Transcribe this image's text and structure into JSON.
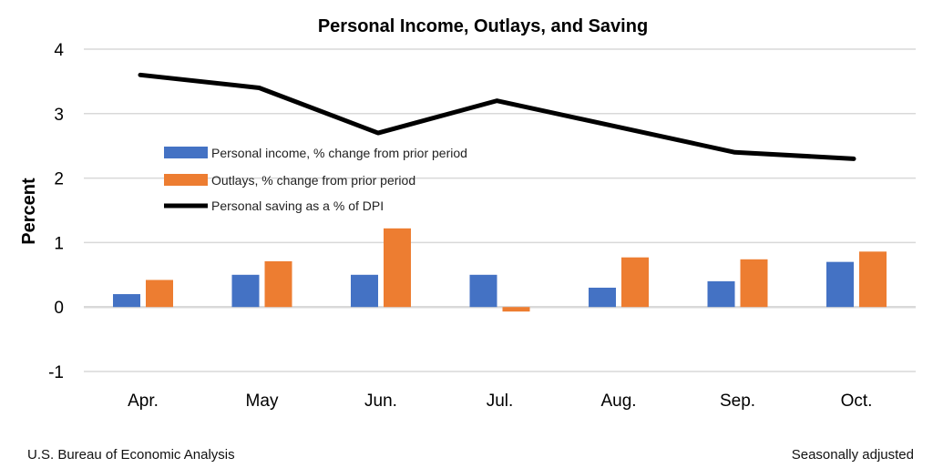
{
  "chart_data": {
    "type": "bar+line",
    "title": "Personal Income, Outlays, and Saving",
    "xlabel": "",
    "ylabel": "Percent",
    "categories": [
      "Apr.",
      "May",
      "Jun.",
      "Jul.",
      "Aug.",
      "Sep.",
      "Oct."
    ],
    "ylim": [
      -1,
      4
    ],
    "yticks": [
      -1,
      0,
      1,
      2,
      3,
      4
    ],
    "grid": true,
    "legend_position": "upper-left-inside",
    "series": [
      {
        "name": "Personal income, % change from prior period",
        "type": "bar",
        "color": "#4472C4",
        "values": [
          0.2,
          0.5,
          0.5,
          0.5,
          0.3,
          0.4,
          0.7
        ]
      },
      {
        "name": "Outlays, % change from prior period",
        "type": "bar",
        "color": "#ED7D31",
        "values": [
          0.42,
          0.71,
          1.22,
          -0.07,
          0.77,
          0.74,
          0.86
        ]
      },
      {
        "name": "Personal saving as a % of DPI",
        "type": "line",
        "color": "#000000",
        "values": [
          3.6,
          3.4,
          2.7,
          3.2,
          2.8,
          2.4,
          2.3
        ]
      }
    ],
    "source": "U.S. Bureau of Economic Analysis",
    "note": "Seasonally adjusted"
  }
}
